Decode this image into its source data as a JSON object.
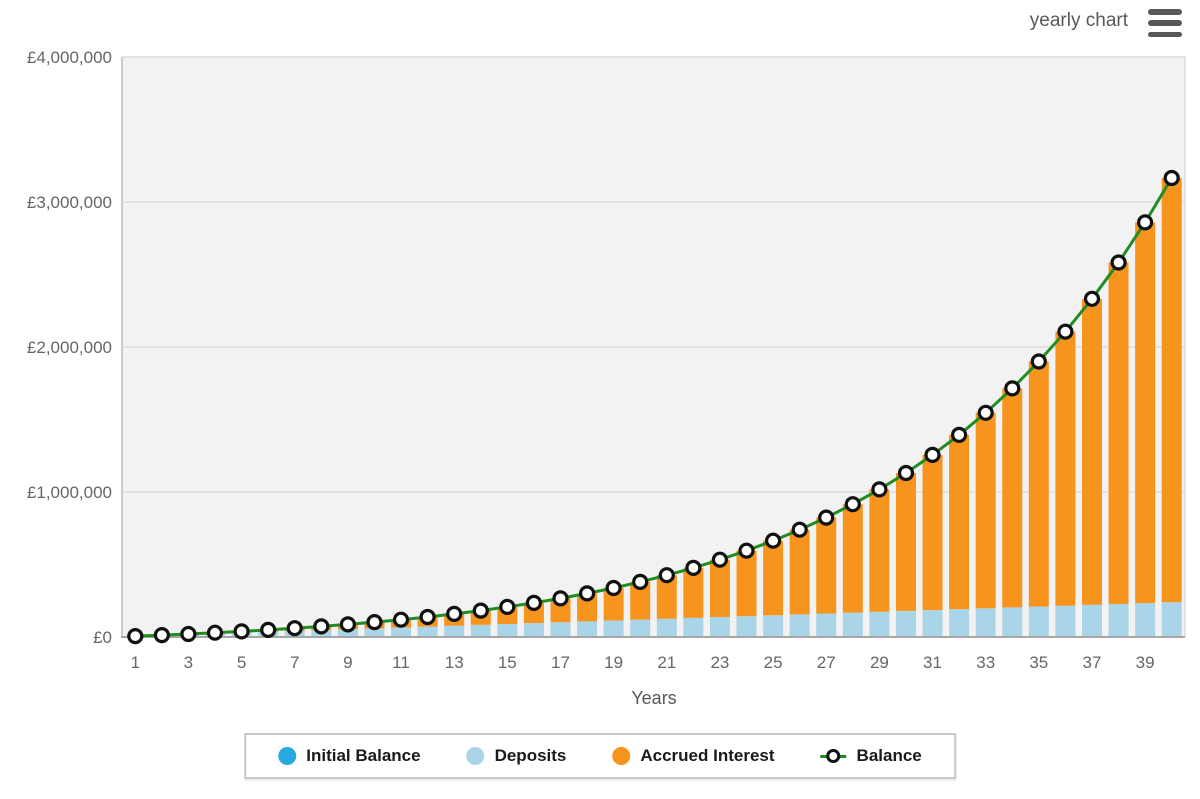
{
  "header": {
    "title": "yearly chart",
    "menu_icon": "hamburger-icon"
  },
  "colors": {
    "plot_background": "#f2f2f2",
    "gridline": "#e3e3e3",
    "axis_line_bottom": "#a6a6a6",
    "axis_line_left": "#cccccc",
    "axis_line_right": "#dddddd",
    "axis_text": "#666666",
    "initial_balance": "#29a9e1",
    "deposits": "#aad5e8",
    "accrued_interest": "#f7941e",
    "balance_line": "#228b22",
    "marker_stroke": "#111111",
    "marker_fill": "#ffffff"
  },
  "chart_data": {
    "type": "bar",
    "stacked": true,
    "title": "",
    "xlabel": "Years",
    "ylabel": "",
    "ylim": [
      0,
      4000000
    ],
    "currency": "£",
    "grid": true,
    "legend_position": "bottom",
    "ytick_labels": [
      "£0",
      "£1,000,000",
      "£2,000,000",
      "£3,000,000",
      "£4,000,000"
    ],
    "xticks_shown": [
      1,
      3,
      5,
      7,
      9,
      11,
      13,
      15,
      17,
      19,
      21,
      23,
      25,
      27,
      29,
      31,
      33,
      35,
      37,
      39
    ],
    "x": [
      1,
      2,
      3,
      4,
      5,
      6,
      7,
      8,
      9,
      10,
      11,
      12,
      13,
      14,
      15,
      16,
      17,
      18,
      19,
      20,
      21,
      22,
      23,
      24,
      25,
      26,
      27,
      28,
      29,
      30,
      31,
      32,
      33,
      34,
      35,
      36,
      37,
      38,
      39,
      40
    ],
    "series": [
      {
        "name": "Initial Balance",
        "type": "bar",
        "color": "#29a9e1",
        "values": [
          0,
          0,
          0,
          0,
          0,
          0,
          0,
          0,
          0,
          0,
          0,
          0,
          0,
          0,
          0,
          0,
          0,
          0,
          0,
          0,
          0,
          0,
          0,
          0,
          0,
          0,
          0,
          0,
          0,
          0,
          0,
          0,
          0,
          0,
          0,
          0,
          0,
          0,
          0,
          0
        ]
      },
      {
        "name": "Deposits",
        "type": "bar",
        "color": "#aad5e8",
        "values": [
          6000,
          12000,
          18000,
          24000,
          30000,
          36000,
          42000,
          48000,
          54000,
          60000,
          66000,
          72000,
          78000,
          84000,
          90000,
          96000,
          102000,
          108000,
          114000,
          120000,
          126000,
          132000,
          138000,
          144000,
          150000,
          156000,
          162000,
          168000,
          174000,
          180000,
          186000,
          192000,
          198000,
          204000,
          210000,
          216000,
          222000,
          228000,
          234000,
          240000
        ]
      },
      {
        "name": "Accrued Interest",
        "type": "bar",
        "color": "#f7941e",
        "values": [
          283,
          1223,
          2893,
          5365,
          8725,
          13066,
          18489,
          25109,
          33051,
          42453,
          53468,
          66266,
          81033,
          97974,
          117319,
          139318,
          164250,
          192421,
          224173,
          259878,
          299953,
          344854,
          395086,
          451209,
          513839,
          583658,
          661418,
          747952,
          844179,
          951112,
          1069875,
          1201707,
          1347976,
          1510198,
          1690041,
          1889350,
          2110163,
          2354735,
          2625551,
          2925364
        ]
      },
      {
        "name": "Balance",
        "type": "line",
        "color": "#228b22",
        "marker": "open-circle",
        "values": [
          6283,
          13223,
          20893,
          29365,
          38725,
          49066,
          60489,
          73109,
          87051,
          102453,
          119468,
          138266,
          159033,
          181974,
          207319,
          235318,
          266250,
          300421,
          338173,
          379878,
          425953,
          476854,
          533086,
          595209,
          663839,
          739658,
          823418,
          915952,
          1018179,
          1131112,
          1255875,
          1393707,
          1545976,
          1714198,
          1900041,
          2105350,
          2332163,
          2582735,
          2859551,
          3165364
        ]
      }
    ]
  }
}
